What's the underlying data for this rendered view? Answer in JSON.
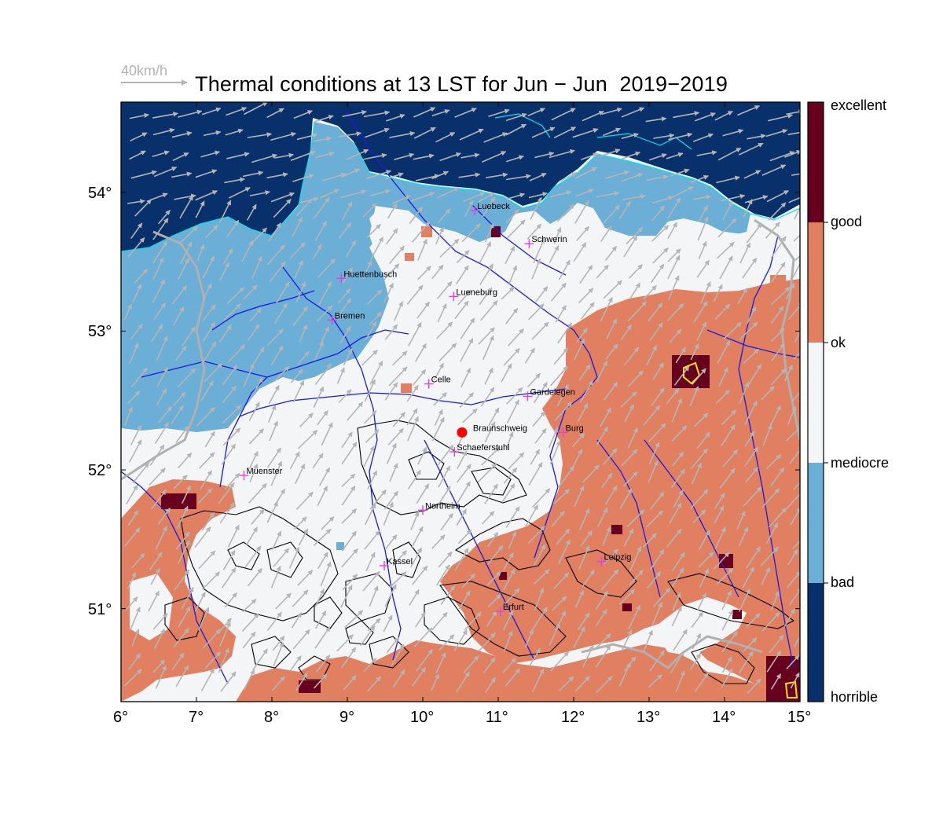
{
  "header": {
    "title": "Thermal conditions at 13 LST for Jun − Jun  2019−2019",
    "wind_reference": "40km/h"
  },
  "colors": {
    "horrible": "#08306b",
    "bad": "#6baed6",
    "mediocre": "#f4f5f7",
    "ok": "#e08061",
    "good": "#67001f",
    "water_outline": "#00e5ee",
    "rivers": "#1a1adf",
    "wind_arrows": "#b5b5b5",
    "city_markers": "#e040e0",
    "home_marker": "#ff0000"
  },
  "legend": {
    "labels": [
      "excellent",
      "good",
      "ok",
      "mediocre",
      "bad",
      "horrible"
    ]
  },
  "axes": {
    "lon_ticks": [
      "6°",
      "7°",
      "8°",
      "9°",
      "10°",
      "11°",
      "12°",
      "13°",
      "14°",
      "15°"
    ],
    "lat_ticks": [
      "54°",
      "53°",
      "52°",
      "51°"
    ]
  },
  "cities": [
    {
      "name": "Luebeck",
      "lon": 10.69,
      "lat": 53.87
    },
    {
      "name": "Schwerin",
      "lon": 11.41,
      "lat": 53.63
    },
    {
      "name": "Huettenbusch",
      "lon": 8.92,
      "lat": 53.38
    },
    {
      "name": "Lueneburg",
      "lon": 10.41,
      "lat": 53.25
    },
    {
      "name": "Bremen",
      "lon": 8.8,
      "lat": 53.08
    },
    {
      "name": "Celle",
      "lon": 10.08,
      "lat": 52.62
    },
    {
      "name": "Gardelegen",
      "lon": 11.39,
      "lat": 52.53
    },
    {
      "name": "Burg",
      "lon": 11.86,
      "lat": 52.27
    },
    {
      "name": "Muenster",
      "lon": 7.63,
      "lat": 51.96
    },
    {
      "name": "Schaeferstuhl",
      "lon": 10.42,
      "lat": 52.13
    },
    {
      "name": "Northeim",
      "lon": 10.0,
      "lat": 51.71
    },
    {
      "name": "Kassel",
      "lon": 9.49,
      "lat": 51.31
    },
    {
      "name": "Leipzig",
      "lon": 12.37,
      "lat": 51.34
    },
    {
      "name": "Erfurt",
      "lon": 11.03,
      "lat": 50.98
    }
  ],
  "home": {
    "name": "Braunschweig",
    "lon": 10.52,
    "lat": 52.27
  }
}
